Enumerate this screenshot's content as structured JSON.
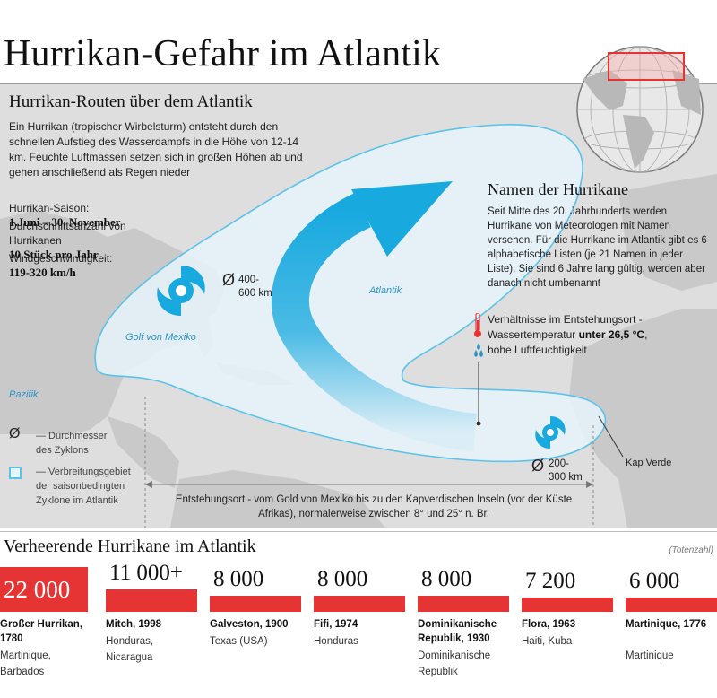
{
  "title": "Hurrikan-Gefahr im Atlantik",
  "routes": {
    "title": "Hurrikan-Routen über dem Atlantik",
    "intro": "Ein Hurrikan (tropischer Wirbelsturm) entsteht durch den schnellen Aufstieg des Wasserdampfs in die Höhe von 12-14 km. Feuchte Luftmassen setzen sich in großen Höhen ab und gehen anschließend als Regen nieder"
  },
  "facts": {
    "season_label": "Hurrikan-Saison:",
    "season_value": "1.Juni – 30. November",
    "avg_label": "Durchschnittsanzahl von Hurrikanen",
    "avg_value": "10 Stück pro Jahr",
    "wind_label": "Windgeschwindigkeit:",
    "wind_value": "119-320 km/h"
  },
  "names": {
    "title": "Namen der Hurrikane",
    "text": "Seit Mitte des 20. Jahrhunderts werden Hurrikane von Meteorologen mit Namen versehen. Für die Hurrikane im Atlantik gibt es 6 alphabetische Listen (je 21 Namen in jeder Liste). Sie sind 6 Jahre lang gültig, werden aber danach nicht umbenannt"
  },
  "conditions": {
    "line1": "Verhältnisse im Entstehungsort -",
    "line2_prefix": "Wassertemperatur ",
    "line2_bold": "unter 26,5 °C",
    "line2_suffix": ",",
    "line3": "hohe Luftfeuchtigkeit"
  },
  "map": {
    "golf": "Golf von Mexiko",
    "atlantik": "Atlantik",
    "pazifik": "Pazifik",
    "diam_large": "400-\n600 km",
    "diam_small": "200-\n300 km",
    "kap_verde": "Kap Verde",
    "origin": "Entstehungsort - vom Gold von Mexiko bis zu den Kapverdischen Inseln (vor der Küste Afrikas), normalerweise zwischen 8° und 25°  n. Br.",
    "diameter_symbol": "Ø"
  },
  "legend": {
    "diameter": "— Durchmesser\ndes Zyklons",
    "area": "— Verbreitungsgebiet\nder saisonbedingten\nZyklone im Atlantik"
  },
  "colors": {
    "accent_red": "#e63434",
    "storm_blue": "#18a9df",
    "area_fill": "#e6f4fb",
    "area_stroke": "#5bc2ea"
  },
  "bottom": {
    "title": "Verheerende Hurrikane im Atlantik",
    "unit": "(Totenzahl)"
  },
  "chart_data": {
    "type": "bar",
    "title": "Verheerende Hurrikane im Atlantik",
    "ylabel": "(Totenzahl)",
    "categories": [
      "Großer Hurrikan, 1780",
      "Mitch, 1998",
      "Galveston, 1900",
      "Fifi, 1974",
      "Dominikanische Republik, 1930",
      "Flora, 1963",
      "Martinique, 1776"
    ],
    "values": [
      22000,
      11000,
      8000,
      8000,
      8000,
      7200,
      6000
    ],
    "labels": [
      "22 000",
      "11 000+",
      "8 000",
      "8 000",
      "8 000",
      "7 200",
      "6 000"
    ],
    "places": [
      "Martinique,\nBarbados",
      "Honduras,\nNicaragua",
      "Texas (USA)",
      "Honduras",
      "Dominikanische\nRepublik",
      "Haiti, Kuba",
      "Martinique"
    ],
    "ylim": [
      0,
      22000
    ]
  }
}
